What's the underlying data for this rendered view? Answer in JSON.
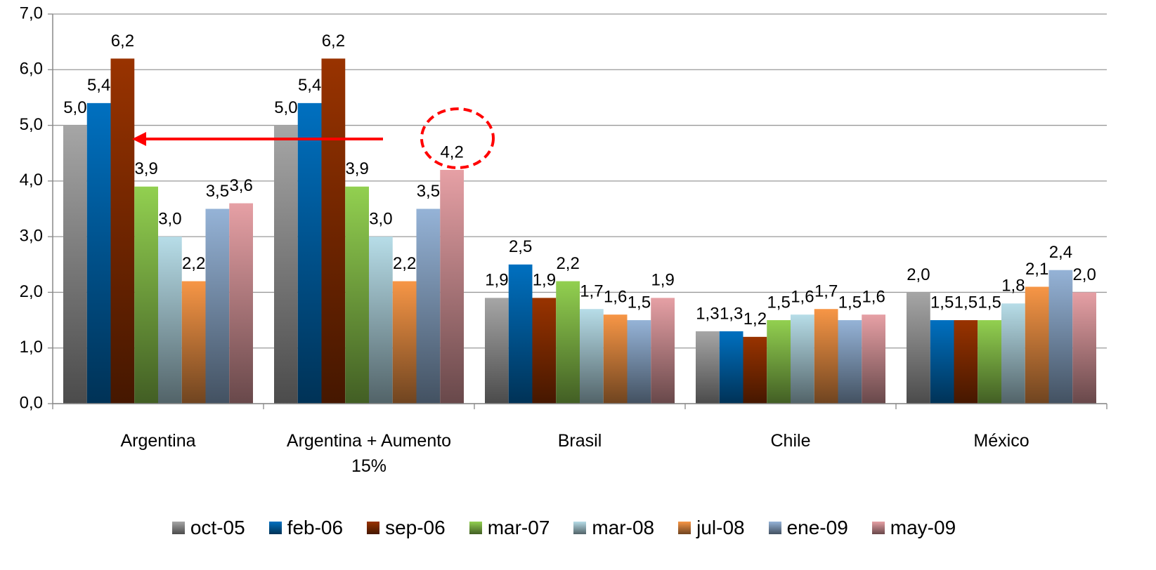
{
  "chart_data": {
    "type": "bar",
    "categories": [
      "Argentina",
      "Argentina + Aumento 15%",
      "Brasil",
      "Chile",
      "México"
    ],
    "series": [
      {
        "name": "oct-05",
        "color": "#a6a6a6",
        "values": [
          5.0,
          5.0,
          1.9,
          1.3,
          2.0
        ],
        "value_labels": [
          "5,0",
          "5,0",
          "1,9",
          "1,3",
          "2,0"
        ]
      },
      {
        "name": "feb-06",
        "color": "#0070c0",
        "values": [
          5.4,
          5.4,
          2.5,
          1.3,
          1.5
        ],
        "value_labels": [
          "5,4",
          "5,4",
          "2,5",
          "1,3",
          "1,5"
        ]
      },
      {
        "name": "sep-06",
        "color": "#993300",
        "values": [
          6.2,
          6.2,
          1.9,
          1.2,
          1.5
        ],
        "value_labels": [
          "6,2",
          "6,2",
          "1,9",
          "1,2",
          "1,5"
        ]
      },
      {
        "name": "mar-07",
        "color": "#92d050",
        "values": [
          3.9,
          3.9,
          2.2,
          1.5,
          1.5
        ],
        "value_labels": [
          "3,9",
          "3,9",
          "2,2",
          "1,5",
          "1,5"
        ]
      },
      {
        "name": "mar-08",
        "color": "#b7dde8",
        "values": [
          3.0,
          3.0,
          1.7,
          1.6,
          1.8
        ],
        "value_labels": [
          "3,0",
          "3,0",
          "1,7",
          "1,6",
          "1,8"
        ]
      },
      {
        "name": "jul-08",
        "color": "#f79646",
        "values": [
          2.2,
          2.2,
          1.6,
          1.7,
          2.1
        ],
        "value_labels": [
          "2,2",
          "2,2",
          "1,6",
          "1,7",
          "2,1"
        ]
      },
      {
        "name": "ene-09",
        "color": "#95b3d7",
        "values": [
          3.5,
          3.5,
          1.5,
          1.5,
          2.4
        ],
        "value_labels": [
          "3,5",
          "3,5",
          "1,5",
          "1,5",
          "2,4"
        ]
      },
      {
        "name": "may-09",
        "color": "#e6a0a5",
        "values": [
          3.6,
          4.2,
          1.9,
          1.6,
          2.0
        ],
        "value_labels": [
          "3,6",
          "4,2",
          "1,9",
          "1,6",
          "2,0"
        ]
      }
    ],
    "ylim": [
      0,
      7
    ],
    "yticks": [
      {
        "value": 0,
        "label": "0,0"
      },
      {
        "value": 1,
        "label": "1,0"
      },
      {
        "value": 2,
        "label": "2,0"
      },
      {
        "value": 3,
        "label": "3,0"
      },
      {
        "value": 4,
        "label": "4,0"
      },
      {
        "value": 5,
        "label": "5,0"
      },
      {
        "value": 6,
        "label": "6,0"
      },
      {
        "value": 7,
        "label": "7,0"
      }
    ],
    "grid": true,
    "legend": "bottom"
  }
}
